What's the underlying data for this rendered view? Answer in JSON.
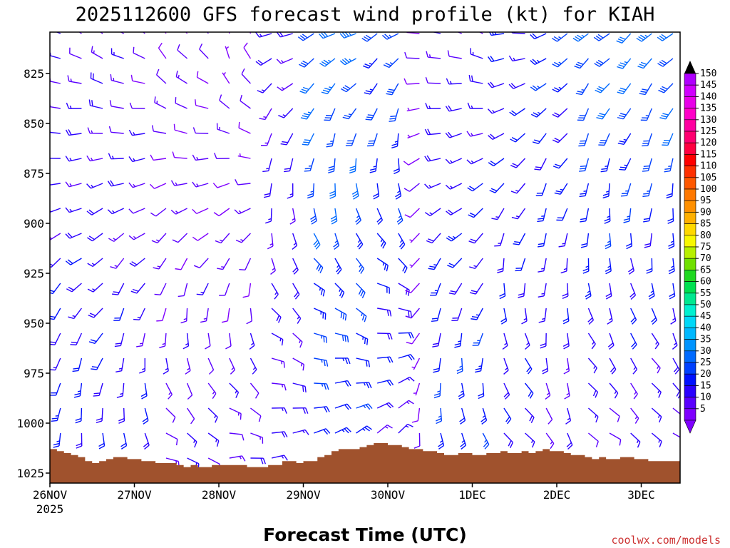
{
  "chart_data": {
    "type": "wind-barb-time-height",
    "title": "2025112600 GFS forecast wind profile (kt) for KIAH",
    "xlabel": "Forecast Time (UTC)",
    "ylabel": "",
    "credit": "coolwx.com/models",
    "year_label": "2025",
    "x_ticks": [
      {
        "hour": 0,
        "label": "26NOV"
      },
      {
        "hour": 24,
        "label": "27NOV"
      },
      {
        "hour": 48,
        "label": "28NOV"
      },
      {
        "hour": 72,
        "label": "29NOV"
      },
      {
        "hour": 96,
        "label": "30NOV"
      },
      {
        "hour": 120,
        "label": "1DEC"
      },
      {
        "hour": 144,
        "label": "2DEC"
      },
      {
        "hour": 168,
        "label": "3DEC"
      }
    ],
    "x_range_hours": [
      0,
      180
    ],
    "y_ticks": [
      {
        "p": 825,
        "label": "825"
      },
      {
        "p": 850,
        "label": "850"
      },
      {
        "p": 875,
        "label": "875"
      },
      {
        "p": 900,
        "label": "900"
      },
      {
        "p": 925,
        "label": "925"
      },
      {
        "p": 950,
        "label": "950"
      },
      {
        "p": 975,
        "label": "975"
      },
      {
        "p": 1000,
        "label": "1000"
      },
      {
        "p": 1025,
        "label": "1025"
      }
    ],
    "y_range_hpa": [
      800,
      1030
    ],
    "colorbar": {
      "levels": [
        5,
        10,
        15,
        20,
        25,
        30,
        35,
        40,
        45,
        50,
        55,
        60,
        65,
        70,
        75,
        80,
        85,
        90,
        95,
        100,
        105,
        110,
        115,
        120,
        125,
        130,
        135,
        140,
        145,
        150
      ],
      "colors": [
        "#7f00ff",
        "#5a00ff",
        "#2a00ff",
        "#0010ff",
        "#0040ff",
        "#006aff",
        "#0094ff",
        "#00b8ff",
        "#00d8f8",
        "#00f0d0",
        "#00e890",
        "#00e050",
        "#20d820",
        "#70e000",
        "#b8f000",
        "#f8f800",
        "#ffd800",
        "#ffb000",
        "#ff9000",
        "#ff7800",
        "#ff5800",
        "#ff3000",
        "#ff0000",
        "#ff0040",
        "#ff0070",
        "#ff00a0",
        "#ff00c8",
        "#e800e8",
        "#d000ff",
        "#b000ff"
      ]
    },
    "wind_segments": [
      {
        "t0": 0,
        "t1": 18,
        "hdir": "W",
        "dir_top": 300,
        "spd_top": 14,
        "dir_bot": 170,
        "spd_bot": 22
      },
      {
        "t0": 18,
        "t1": 30,
        "hdir": "W",
        "dir_top": 305,
        "spd_top": 12,
        "dir_bot": 150,
        "spd_bot": 20
      },
      {
        "t0": 30,
        "t1": 48,
        "hdir": "SW",
        "dir_top": 330,
        "spd_top": 10,
        "dir_bot": 110,
        "spd_bot": 14
      },
      {
        "t0": 48,
        "t1": 60,
        "hdir": "E",
        "dir_top": 350,
        "spd_top": 8,
        "dir_bot": 85,
        "spd_bot": 15
      },
      {
        "t0": 60,
        "t1": 72,
        "hdir": "SE",
        "dir_top": 250,
        "spd_top": 16,
        "dir_bot": 70,
        "spd_bot": 16
      },
      {
        "t0": 72,
        "t1": 90,
        "hdir": "SE",
        "dir_top": 245,
        "spd_top": 32,
        "dir_bot": 50,
        "spd_bot": 22
      },
      {
        "t0": 90,
        "t1": 100,
        "hdir": "S",
        "dir_top": 240,
        "spd_top": 28,
        "dir_bot": 30,
        "spd_bot": 16
      },
      {
        "t0": 100,
        "t1": 108,
        "hdir": "N",
        "dir_top": 270,
        "spd_top": 8,
        "dir_bot": 180,
        "spd_bot": 8
      },
      {
        "t0": 108,
        "t1": 125,
        "hdir": "NW",
        "dir_top": 290,
        "spd_top": 14,
        "dir_bot": 150,
        "spd_bot": 26
      },
      {
        "t0": 125,
        "t1": 140,
        "hdir": "N",
        "dir_top": 270,
        "spd_top": 20,
        "dir_bot": 120,
        "spd_bot": 18
      },
      {
        "t0": 140,
        "t1": 152,
        "hdir": "NW",
        "dir_top": 240,
        "spd_top": 24,
        "dir_bot": 145,
        "spd_bot": 14
      },
      {
        "t0": 152,
        "t1": 180,
        "hdir": "N",
        "dir_top": 230,
        "spd_top": 32,
        "dir_bot": 120,
        "spd_bot": 12
      }
    ],
    "terrain_hpa": [
      [
        0,
        1013
      ],
      [
        2,
        1014
      ],
      [
        4,
        1015
      ],
      [
        6,
        1016
      ],
      [
        8,
        1017
      ],
      [
        10,
        1019
      ],
      [
        12,
        1020
      ],
      [
        14,
        1019
      ],
      [
        16,
        1018
      ],
      [
        18,
        1017
      ],
      [
        20,
        1017
      ],
      [
        22,
        1018
      ],
      [
        24,
        1018
      ],
      [
        26,
        1019
      ],
      [
        28,
        1019
      ],
      [
        30,
        1020
      ],
      [
        32,
        1020
      ],
      [
        34,
        1020
      ],
      [
        36,
        1021
      ],
      [
        38,
        1022
      ],
      [
        40,
        1021
      ],
      [
        42,
        1022
      ],
      [
        44,
        1022
      ],
      [
        46,
        1021
      ],
      [
        48,
        1021
      ],
      [
        50,
        1021
      ],
      [
        52,
        1021
      ],
      [
        54,
        1021
      ],
      [
        56,
        1022
      ],
      [
        58,
        1022
      ],
      [
        60,
        1022
      ],
      [
        62,
        1021
      ],
      [
        64,
        1021
      ],
      [
        66,
        1019
      ],
      [
        68,
        1019
      ],
      [
        70,
        1020
      ],
      [
        72,
        1019
      ],
      [
        74,
        1019
      ],
      [
        76,
        1017
      ],
      [
        78,
        1016
      ],
      [
        80,
        1014
      ],
      [
        82,
        1013
      ],
      [
        84,
        1013
      ],
      [
        86,
        1013
      ],
      [
        88,
        1012
      ],
      [
        90,
        1011
      ],
      [
        92,
        1010
      ],
      [
        94,
        1010
      ],
      [
        96,
        1011
      ],
      [
        98,
        1011
      ],
      [
        100,
        1012
      ],
      [
        102,
        1013
      ],
      [
        104,
        1013
      ],
      [
        106,
        1014
      ],
      [
        108,
        1014
      ],
      [
        110,
        1015
      ],
      [
        112,
        1016
      ],
      [
        114,
        1016
      ],
      [
        116,
        1015
      ],
      [
        118,
        1015
      ],
      [
        120,
        1016
      ],
      [
        122,
        1016
      ],
      [
        124,
        1015
      ],
      [
        126,
        1015
      ],
      [
        128,
        1014
      ],
      [
        130,
        1015
      ],
      [
        132,
        1015
      ],
      [
        134,
        1014
      ],
      [
        136,
        1015
      ],
      [
        138,
        1014
      ],
      [
        140,
        1013
      ],
      [
        142,
        1014
      ],
      [
        144,
        1014
      ],
      [
        146,
        1015
      ],
      [
        148,
        1016
      ],
      [
        150,
        1016
      ],
      [
        152,
        1017
      ],
      [
        154,
        1018
      ],
      [
        156,
        1017
      ],
      [
        158,
        1018
      ],
      [
        160,
        1018
      ],
      [
        162,
        1017
      ],
      [
        164,
        1017
      ],
      [
        166,
        1018
      ],
      [
        168,
        1018
      ],
      [
        170,
        1019
      ],
      [
        172,
        1019
      ],
      [
        174,
        1019
      ],
      [
        176,
        1019
      ],
      [
        178,
        1019
      ],
      [
        180,
        1019
      ]
    ],
    "terrain_color": "#a0522d"
  }
}
